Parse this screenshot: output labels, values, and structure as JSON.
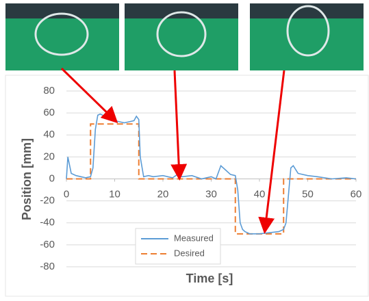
{
  "chart_data": {
    "type": "line",
    "xlabel": "Time [s]",
    "ylabel": "Position [mm]",
    "xlim": [
      0,
      60
    ],
    "xticks": [
      0,
      10,
      20,
      30,
      40,
      50,
      60
    ],
    "ylim": [
      -80,
      80
    ],
    "yticks": [
      -80,
      -60,
      -40,
      -20,
      0,
      20,
      40,
      60,
      80
    ],
    "grid": true,
    "legend": "lower center",
    "series": [
      {
        "name": "Measured",
        "color": "#5b9bd5",
        "style": "solid",
        "x": [
          0,
          0.3,
          1,
          2,
          3,
          4,
          5,
          5.5,
          6,
          6.5,
          7,
          8,
          9,
          10,
          11,
          12,
          13,
          14,
          14.5,
          15,
          15.3,
          16,
          17,
          18,
          20,
          22,
          23,
          24,
          26,
          28,
          30,
          31,
          32,
          33,
          34,
          35,
          35.5,
          36,
          36.5,
          37,
          38,
          40,
          42,
          44,
          45,
          45.5,
          46,
          46.5,
          47,
          48,
          50,
          52,
          55,
          58,
          60
        ],
        "values": [
          0,
          20,
          5,
          3,
          2,
          1,
          2,
          10,
          45,
          58,
          59,
          57,
          54,
          53,
          52,
          51,
          52,
          53,
          57,
          54,
          20,
          2,
          3,
          2,
          3,
          1,
          4,
          2,
          3,
          0,
          2,
          0,
          12,
          8,
          4,
          3,
          -10,
          -40,
          -46,
          -48,
          -50,
          -50,
          -49,
          -48,
          -46,
          -40,
          -15,
          10,
          12,
          5,
          3,
          2,
          0,
          1,
          0
        ]
      },
      {
        "name": "Desired",
        "color": "#ed7d31",
        "style": "dashed",
        "x": [
          0,
          5,
          5,
          15,
          15,
          35,
          35,
          45,
          45,
          60
        ],
        "values": [
          0,
          0,
          50,
          50,
          0,
          0,
          -50,
          -50,
          0,
          0
        ]
      }
    ]
  }
}
